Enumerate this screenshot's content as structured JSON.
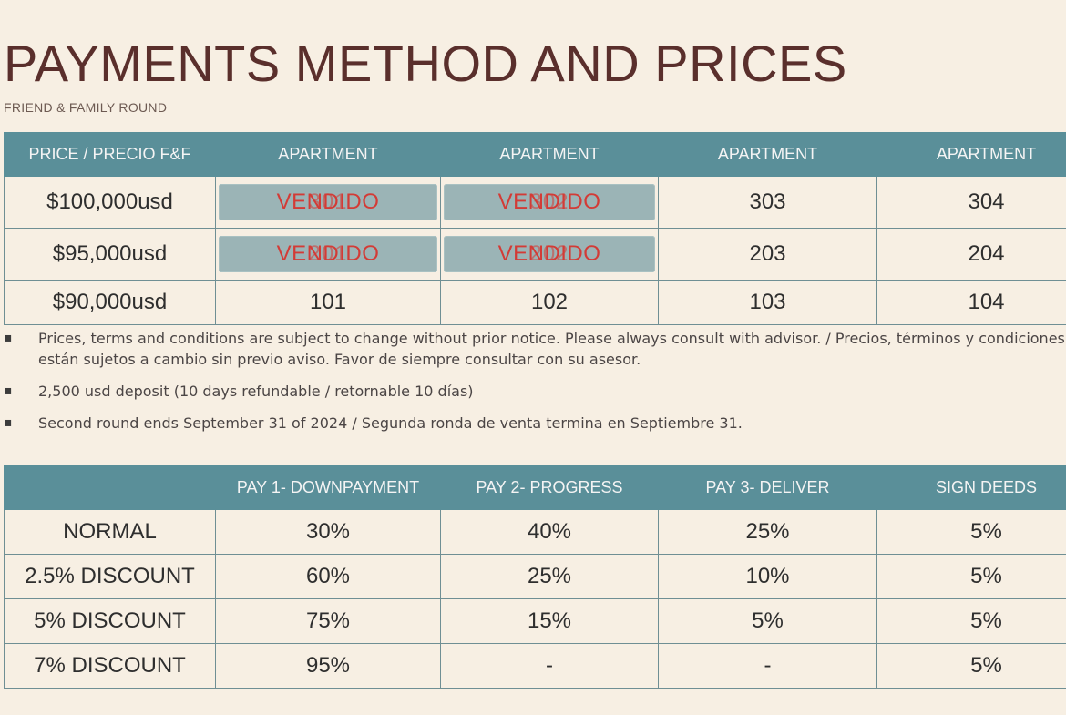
{
  "title": "PAYMENTS METHOD AND PRICES",
  "subtitle": "FRIEND & FAMILY ROUND",
  "prices_table": {
    "headers": [
      "PRICE / PRECIO F&F",
      "APARTMENT",
      "APARTMENT",
      "APARTMENT",
      "APARTMENT"
    ],
    "rows": [
      {
        "price": "$100,000usd",
        "units": [
          {
            "number": "301",
            "sold": true,
            "sold_label": "VENDIDO"
          },
          {
            "number": "302",
            "sold": true,
            "sold_label": "VENDIDO"
          },
          {
            "number": "303",
            "sold": false
          },
          {
            "number": "304",
            "sold": false
          }
        ]
      },
      {
        "price": "$95,000usd",
        "units": [
          {
            "number": "201",
            "sold": true,
            "sold_label": "VENDIDO"
          },
          {
            "number": "202",
            "sold": true,
            "sold_label": "VENDIDO"
          },
          {
            "number": "203",
            "sold": false
          },
          {
            "number": "204",
            "sold": false
          }
        ]
      },
      {
        "price": "$90,000usd",
        "units": [
          {
            "number": "101",
            "sold": false
          },
          {
            "number": "102",
            "sold": false
          },
          {
            "number": "103",
            "sold": false
          },
          {
            "number": "104",
            "sold": false
          }
        ]
      }
    ]
  },
  "notes": [
    "Prices, terms and conditions are subject to change without prior notice. Please always consult with advisor. / Precios, términos y condiciones están sujetos a cambio sin previo aviso. Favor de siempre consultar con su asesor.",
    "2,500 usd deposit (10 days refundable / retornable 10 días)",
    "Second round ends September 31 of 2024 /  Segunda ronda de venta termina en Septiembre 31."
  ],
  "bullet_symbol": "▪",
  "payments_table": {
    "headers": [
      "",
      "PAY 1- DOWNPAYMENT",
      "PAY 2-  PROGRESS",
      "PAY 3- DELIVER",
      "SIGN DEEDS"
    ],
    "rows": [
      [
        "NORMAL",
        "30%",
        "40%",
        "25%",
        "5%"
      ],
      [
        "2.5% DISCOUNT",
        "60%",
        "25%",
        "10%",
        "5%"
      ],
      [
        "5% DISCOUNT",
        "75%",
        "15%",
        "5%",
        "5%"
      ],
      [
        "7% DISCOUNT",
        "95%",
        "-",
        "-",
        "5%"
      ]
    ]
  },
  "colors": {
    "background": "#f7efe3",
    "header": "#5a8f99",
    "title": "#5a2f2c",
    "sold_box": "#9bb4b6",
    "sold_text": "#d33b36"
  }
}
